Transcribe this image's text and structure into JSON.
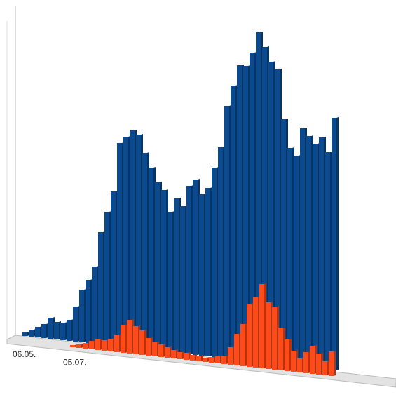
{
  "chart_data": {
    "type": "bar3d",
    "categories": [
      "06.05.",
      null,
      null,
      null,
      null,
      null,
      null,
      null,
      "05.07.",
      null,
      null,
      null,
      null,
      null,
      null,
      null,
      null,
      null,
      null,
      null,
      null,
      null,
      null,
      null,
      null,
      null,
      null,
      null,
      null,
      null,
      null,
      null,
      null,
      null,
      null,
      null,
      null,
      null,
      null,
      null,
      null,
      null,
      null,
      null,
      null,
      null,
      null,
      null,
      null,
      null
    ],
    "series": [
      {
        "color": "#0b4a8f",
        "values": [
          5,
          10,
          15,
          20,
          30,
          25,
          25,
          30,
          50,
          75,
          90,
          110,
          160,
          190,
          220,
          290,
          300,
          310,
          305,
          280,
          260,
          240,
          230,
          200,
          220,
          210,
          240,
          250,
          230,
          240,
          270,
          300,
          360,
          390,
          420,
          420,
          440,
          470,
          450,
          430,
          420,
          350,
          310,
          300,
          340,
          330,
          320,
          330,
          310,
          360
        ]
      },
      {
        "color": "#ff4a1a",
        "values": [
          0,
          0,
          0,
          0,
          0,
          0,
          0,
          0,
          3,
          5,
          8,
          12,
          15,
          15,
          18,
          25,
          40,
          48,
          40,
          35,
          25,
          20,
          18,
          15,
          12,
          10,
          10,
          8,
          8,
          6,
          8,
          10,
          12,
          25,
          45,
          60,
          90,
          100,
          120,
          95,
          90,
          60,
          45,
          30,
          20,
          30,
          40,
          30,
          20,
          35
        ]
      }
    ]
  }
}
